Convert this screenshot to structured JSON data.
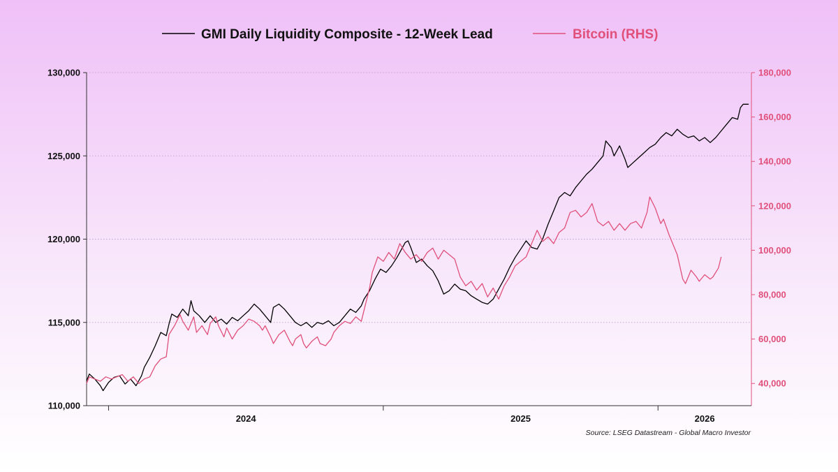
{
  "chart_data": {
    "type": "line",
    "title": "",
    "legend_position": "top-center",
    "source": "Source: LSEG Datastream - Global Macro Investor",
    "x_labels": [
      "2024",
      "2025",
      "2026"
    ],
    "x_range": [
      2023.92,
      2026.34
    ],
    "x_major_ticks": [
      2024.0,
      2025.0,
      2026.0
    ],
    "left_axis": {
      "range": [
        110000,
        130000
      ],
      "ticks": [
        110000,
        115000,
        120000,
        125000,
        130000
      ],
      "tick_labels": [
        "110,000",
        "115,000",
        "120,000",
        "125,000",
        "130,000"
      ],
      "color": "#000000"
    },
    "right_axis": {
      "range": [
        30000,
        180000
      ],
      "ticks": [
        40000,
        60000,
        80000,
        100000,
        120000,
        140000,
        160000,
        180000
      ],
      "tick_labels": [
        "40,000",
        "60,000",
        "80,000",
        "100,000",
        "120,000",
        "140,000",
        "160,000",
        "180,000"
      ],
      "color": "#e0507a"
    },
    "gridlines": true,
    "series": [
      {
        "name": "GMI Daily Liquidity Composite - 12-Week Lead",
        "axis": "left",
        "color": "#000000",
        "points": [
          [
            2023.92,
            111.5
          ],
          [
            2023.93,
            111.9
          ],
          [
            2023.95,
            111.6
          ],
          [
            2023.97,
            111.2
          ],
          [
            2023.98,
            110.9
          ],
          [
            2024.0,
            111.4
          ],
          [
            2024.02,
            111.7
          ],
          [
            2024.04,
            111.8
          ],
          [
            2024.06,
            111.3
          ],
          [
            2024.08,
            111.6
          ],
          [
            2024.1,
            111.2
          ],
          [
            2024.12,
            111.8
          ],
          [
            2024.13,
            112.3
          ],
          [
            2024.15,
            112.9
          ],
          [
            2024.17,
            113.6
          ],
          [
            2024.19,
            114.4
          ],
          [
            2024.21,
            114.2
          ],
          [
            2024.22,
            114.9
          ],
          [
            2024.23,
            115.5
          ],
          [
            2024.25,
            115.3
          ],
          [
            2024.27,
            115.8
          ],
          [
            2024.29,
            115.4
          ],
          [
            2024.3,
            116.3
          ],
          [
            2024.31,
            115.7
          ],
          [
            2024.33,
            115.4
          ],
          [
            2024.35,
            115.0
          ],
          [
            2024.37,
            115.4
          ],
          [
            2024.39,
            115.0
          ],
          [
            2024.41,
            115.2
          ],
          [
            2024.43,
            114.9
          ],
          [
            2024.45,
            115.3
          ],
          [
            2024.47,
            115.1
          ],
          [
            2024.49,
            115.4
          ],
          [
            2024.51,
            115.7
          ],
          [
            2024.53,
            116.1
          ],
          [
            2024.55,
            115.8
          ],
          [
            2024.57,
            115.4
          ],
          [
            2024.59,
            115.0
          ],
          [
            2024.6,
            115.9
          ],
          [
            2024.62,
            116.1
          ],
          [
            2024.64,
            115.8
          ],
          [
            2024.66,
            115.4
          ],
          [
            2024.68,
            115.0
          ],
          [
            2024.7,
            114.8
          ],
          [
            2024.72,
            115.0
          ],
          [
            2024.74,
            114.7
          ],
          [
            2024.76,
            115.0
          ],
          [
            2024.78,
            114.9
          ],
          [
            2024.8,
            115.1
          ],
          [
            2024.82,
            114.8
          ],
          [
            2024.84,
            115.0
          ],
          [
            2024.86,
            115.4
          ],
          [
            2024.88,
            115.8
          ],
          [
            2024.9,
            115.6
          ],
          [
            2024.92,
            116.0
          ],
          [
            2024.93,
            116.4
          ],
          [
            2024.95,
            116.9
          ],
          [
            2024.97,
            117.6
          ],
          [
            2024.99,
            118.2
          ],
          [
            2025.01,
            118.0
          ],
          [
            2025.03,
            118.4
          ],
          [
            2025.05,
            118.9
          ],
          [
            2025.07,
            119.5
          ],
          [
            2025.08,
            119.8
          ],
          [
            2025.09,
            119.9
          ],
          [
            2025.1,
            119.5
          ],
          [
            2025.12,
            118.6
          ],
          [
            2025.14,
            118.8
          ],
          [
            2025.16,
            118.4
          ],
          [
            2025.18,
            118.1
          ],
          [
            2025.2,
            117.5
          ],
          [
            2025.22,
            116.7
          ],
          [
            2025.24,
            116.9
          ],
          [
            2025.26,
            117.3
          ],
          [
            2025.28,
            117.0
          ],
          [
            2025.3,
            116.9
          ],
          [
            2025.32,
            116.6
          ],
          [
            2025.34,
            116.4
          ],
          [
            2025.36,
            116.2
          ],
          [
            2025.38,
            116.1
          ],
          [
            2025.4,
            116.4
          ],
          [
            2025.42,
            117.0
          ],
          [
            2025.44,
            117.6
          ],
          [
            2025.46,
            118.3
          ],
          [
            2025.48,
            118.9
          ],
          [
            2025.5,
            119.4
          ],
          [
            2025.52,
            119.9
          ],
          [
            2025.54,
            119.5
          ],
          [
            2025.56,
            119.4
          ],
          [
            2025.58,
            120.0
          ],
          [
            2025.6,
            120.9
          ],
          [
            2025.62,
            121.7
          ],
          [
            2025.64,
            122.5
          ],
          [
            2025.66,
            122.8
          ],
          [
            2025.68,
            122.6
          ],
          [
            2025.7,
            123.1
          ],
          [
            2025.72,
            123.5
          ],
          [
            2025.74,
            123.9
          ],
          [
            2025.76,
            124.2
          ],
          [
            2025.78,
            124.6
          ],
          [
            2025.8,
            125.0
          ],
          [
            2025.81,
            125.9
          ],
          [
            2025.83,
            125.5
          ],
          [
            2025.84,
            125.0
          ],
          [
            2025.86,
            125.6
          ],
          [
            2025.88,
            124.8
          ],
          [
            2025.89,
            124.3
          ],
          [
            2025.91,
            124.6
          ],
          [
            2025.93,
            124.9
          ],
          [
            2025.95,
            125.2
          ],
          [
            2025.97,
            125.5
          ],
          [
            2025.99,
            125.7
          ],
          [
            2026.01,
            126.1
          ],
          [
            2026.03,
            126.4
          ],
          [
            2026.05,
            126.2
          ],
          [
            2026.07,
            126.6
          ],
          [
            2026.09,
            126.3
          ],
          [
            2026.11,
            126.1
          ],
          [
            2026.13,
            126.2
          ],
          [
            2026.15,
            125.9
          ],
          [
            2026.17,
            126.1
          ],
          [
            2026.19,
            125.8
          ],
          [
            2026.21,
            126.1
          ],
          [
            2026.23,
            126.5
          ],
          [
            2026.25,
            126.9
          ],
          [
            2026.27,
            127.3
          ],
          [
            2026.29,
            127.2
          ],
          [
            2026.3,
            127.9
          ],
          [
            2026.31,
            128.1
          ],
          [
            2026.33,
            128.1
          ]
        ]
      },
      {
        "name": "Bitcoin (RHS)",
        "axis": "right",
        "color": "#e0507a",
        "points": [
          [
            2023.92,
            40.0
          ],
          [
            2023.93,
            43.0
          ],
          [
            2023.95,
            42.0
          ],
          [
            2023.97,
            41.0
          ],
          [
            2023.99,
            43.0
          ],
          [
            2024.01,
            42.0
          ],
          [
            2024.03,
            43.0
          ],
          [
            2024.05,
            44.0
          ],
          [
            2024.07,
            41.0
          ],
          [
            2024.09,
            43.0
          ],
          [
            2024.11,
            40.0
          ],
          [
            2024.13,
            42.0
          ],
          [
            2024.15,
            43.0
          ],
          [
            2024.17,
            48.0
          ],
          [
            2024.19,
            51.0
          ],
          [
            2024.21,
            52.0
          ],
          [
            2024.22,
            62.0
          ],
          [
            2024.24,
            66.0
          ],
          [
            2024.26,
            71.0
          ],
          [
            2024.27,
            68.0
          ],
          [
            2024.29,
            64.0
          ],
          [
            2024.31,
            70.0
          ],
          [
            2024.32,
            63.0
          ],
          [
            2024.34,
            66.0
          ],
          [
            2024.36,
            62.0
          ],
          [
            2024.37,
            67.0
          ],
          [
            2024.39,
            70.0
          ],
          [
            2024.4,
            66.0
          ],
          [
            2024.42,
            61.0
          ],
          [
            2024.43,
            65.0
          ],
          [
            2024.45,
            60.0
          ],
          [
            2024.47,
            64.0
          ],
          [
            2024.49,
            66.0
          ],
          [
            2024.51,
            69.0
          ],
          [
            2024.53,
            68.0
          ],
          [
            2024.55,
            66.0
          ],
          [
            2024.56,
            64.0
          ],
          [
            2024.57,
            66.0
          ],
          [
            2024.59,
            61.0
          ],
          [
            2024.6,
            58.0
          ],
          [
            2024.62,
            62.0
          ],
          [
            2024.64,
            64.0
          ],
          [
            2024.66,
            59.0
          ],
          [
            2024.67,
            57.0
          ],
          [
            2024.68,
            60.0
          ],
          [
            2024.7,
            62.0
          ],
          [
            2024.71,
            58.0
          ],
          [
            2024.72,
            56.0
          ],
          [
            2024.74,
            59.0
          ],
          [
            2024.76,
            61.0
          ],
          [
            2024.77,
            58.0
          ],
          [
            2024.79,
            57.0
          ],
          [
            2024.81,
            60.0
          ],
          [
            2024.82,
            63.0
          ],
          [
            2024.84,
            66.0
          ],
          [
            2024.86,
            68.0
          ],
          [
            2024.88,
            67.0
          ],
          [
            2024.9,
            70.0
          ],
          [
            2024.92,
            68.0
          ],
          [
            2024.93,
            73.0
          ],
          [
            2024.95,
            83.0
          ],
          [
            2024.96,
            90.0
          ],
          [
            2024.98,
            97.0
          ],
          [
            2025.0,
            95.0
          ],
          [
            2025.02,
            99.0
          ],
          [
            2025.04,
            96.0
          ],
          [
            2025.06,
            103.0
          ],
          [
            2025.08,
            99.0
          ],
          [
            2025.1,
            96.0
          ],
          [
            2025.12,
            98.0
          ],
          [
            2025.14,
            95.0
          ],
          [
            2025.16,
            99.0
          ],
          [
            2025.18,
            101.0
          ],
          [
            2025.2,
            96.0
          ],
          [
            2025.22,
            100.0
          ],
          [
            2025.24,
            98.0
          ],
          [
            2025.26,
            96.0
          ],
          [
            2025.28,
            88.0
          ],
          [
            2025.3,
            84.0
          ],
          [
            2025.32,
            86.0
          ],
          [
            2025.34,
            82.0
          ],
          [
            2025.36,
            85.0
          ],
          [
            2025.38,
            79.0
          ],
          [
            2025.4,
            83.0
          ],
          [
            2025.42,
            78.0
          ],
          [
            2025.44,
            84.0
          ],
          [
            2025.46,
            88.0
          ],
          [
            2025.48,
            93.0
          ],
          [
            2025.5,
            95.0
          ],
          [
            2025.52,
            97.0
          ],
          [
            2025.54,
            103.0
          ],
          [
            2025.56,
            109.0
          ],
          [
            2025.58,
            104.0
          ],
          [
            2025.6,
            106.0
          ],
          [
            2025.62,
            103.0
          ],
          [
            2025.64,
            108.0
          ],
          [
            2025.66,
            110.0
          ],
          [
            2025.68,
            117.0
          ],
          [
            2025.7,
            118.0
          ],
          [
            2025.72,
            115.0
          ],
          [
            2025.74,
            117.0
          ],
          [
            2025.76,
            121.0
          ],
          [
            2025.78,
            113.0
          ],
          [
            2025.8,
            111.0
          ],
          [
            2025.82,
            113.0
          ],
          [
            2025.84,
            109.0
          ],
          [
            2025.86,
            112.0
          ],
          [
            2025.88,
            109.0
          ],
          [
            2025.9,
            112.0
          ],
          [
            2025.92,
            113.0
          ],
          [
            2025.94,
            110.0
          ],
          [
            2025.96,
            117.0
          ],
          [
            2025.97,
            124.0
          ],
          [
            2025.99,
            119.0
          ],
          [
            2026.01,
            112.0
          ],
          [
            2026.02,
            114.0
          ],
          [
            2026.04,
            107.0
          ],
          [
            2026.06,
            101.0
          ],
          [
            2026.07,
            98.0
          ],
          [
            2026.09,
            87.0
          ],
          [
            2026.1,
            85.0
          ],
          [
            2026.12,
            91.0
          ],
          [
            2026.14,
            88.0
          ],
          [
            2026.15,
            86.0
          ],
          [
            2026.17,
            89.0
          ],
          [
            2026.19,
            87.0
          ],
          [
            2026.2,
            88.0
          ],
          [
            2026.22,
            92.0
          ],
          [
            2026.23,
            97.0
          ]
        ]
      }
    ]
  }
}
